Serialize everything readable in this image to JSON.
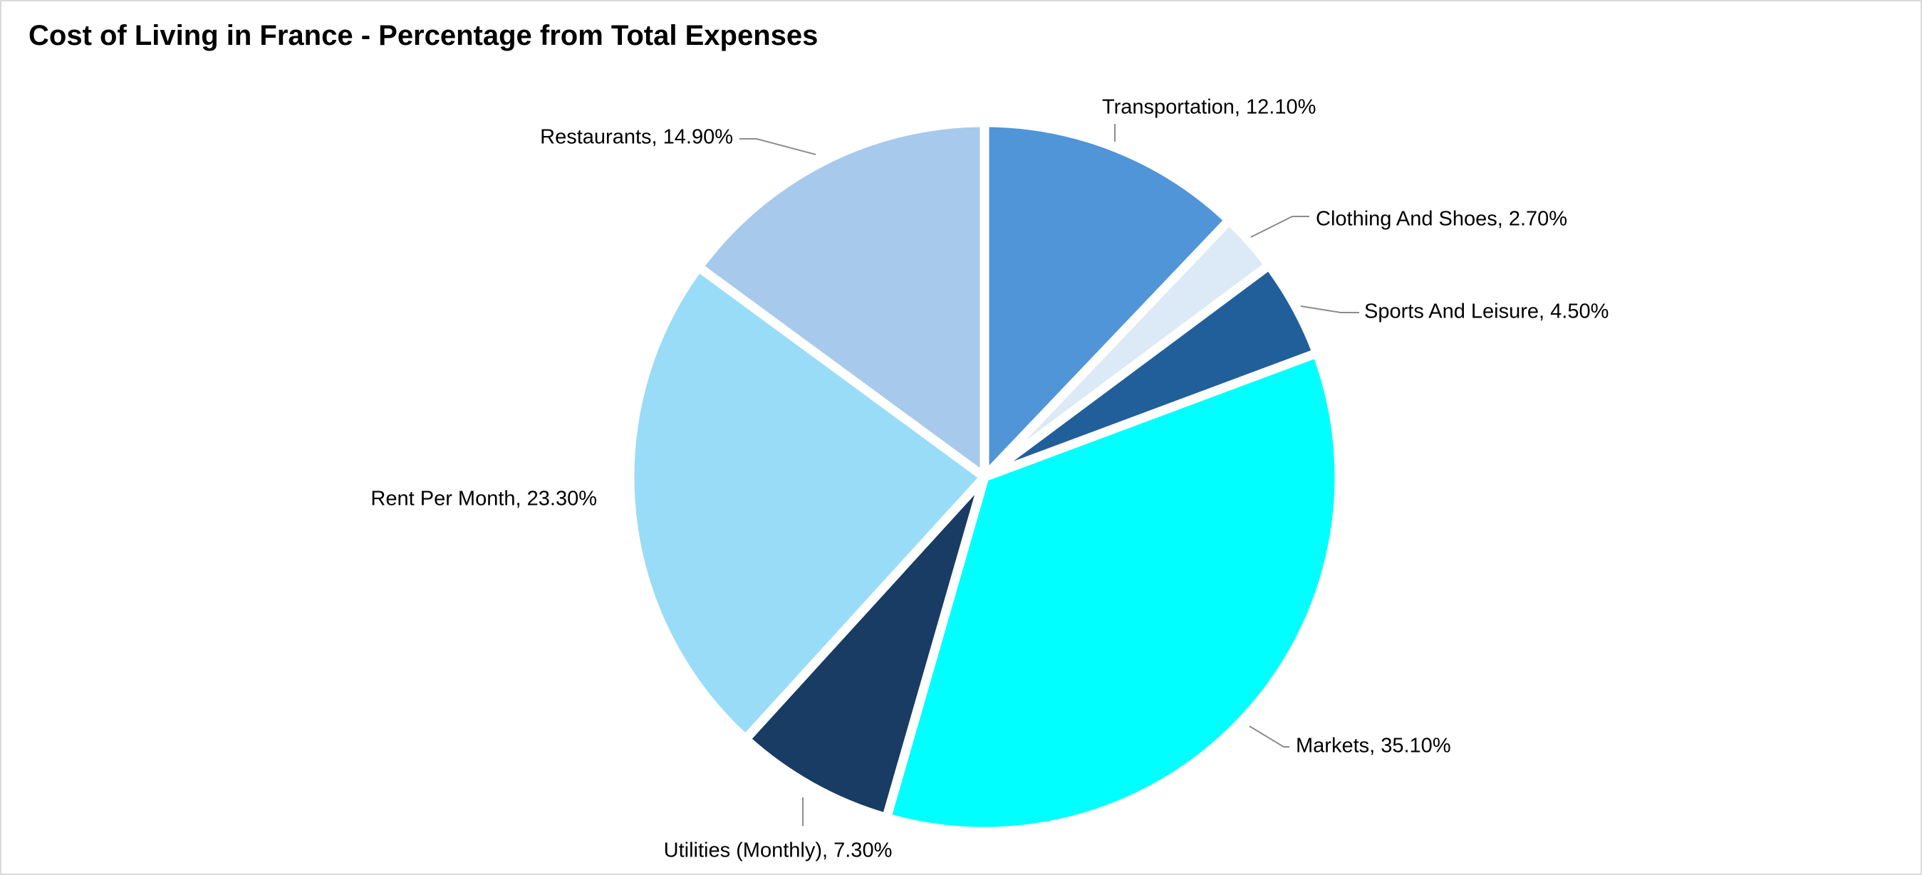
{
  "chart_data": {
    "type": "pie",
    "title": "Cost of Living in France - Percentage from Total Expenses",
    "start_angle_deg": 0,
    "direction": "clockwise",
    "legend": "none",
    "data_labels": "category name and value, outside end with leader lines",
    "slices": [
      {
        "label": "Transportation",
        "value": 12.1,
        "display": "Transportation, 12.10%",
        "color": "#4F95D7"
      },
      {
        "label": "Clothing And Shoes",
        "value": 2.7,
        "display": "Clothing And Shoes, 2.70%",
        "color": "#DCE9F7"
      },
      {
        "label": "Sports And Leisure",
        "value": 4.5,
        "display": "Sports And Leisure, 4.50%",
        "color": "#215F9A"
      },
      {
        "label": "Markets",
        "value": 35.1,
        "display": "Markets, 35.10%",
        "color": "#00FFFF"
      },
      {
        "label": "Utilities (Monthly)",
        "value": 7.3,
        "display": "Utilities (Monthly), 7.30%",
        "color": "#183C63"
      },
      {
        "label": "Rent Per Month",
        "value": 23.3,
        "display": "Rent Per Month, 23.30%",
        "color": "#99DCF8"
      },
      {
        "label": "Restaurants",
        "value": 14.9,
        "display": "Restaurants, 14.90%",
        "color": "#A7CAEC"
      }
    ]
  }
}
